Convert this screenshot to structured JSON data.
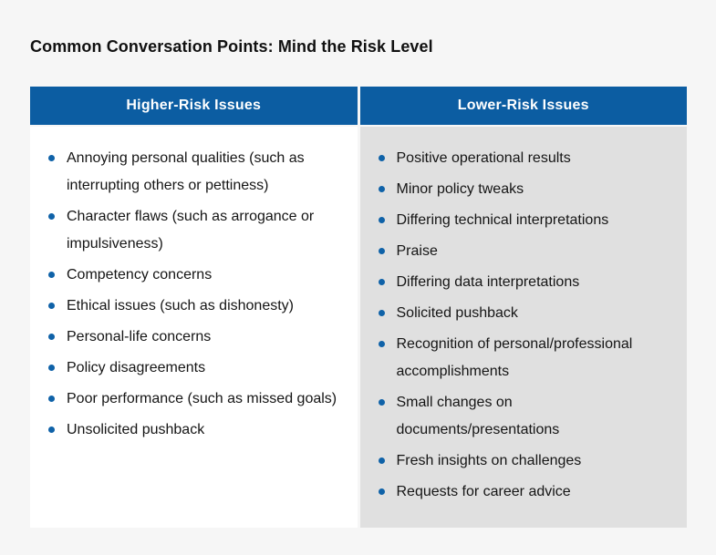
{
  "page": {
    "title": "Common Conversation Points: Mind the Risk Level"
  },
  "colors": {
    "page_bg": "#f6f6f6",
    "header_bg": "#0c5da2",
    "header_text": "#ffffff",
    "left_cell_bg": "#ffffff",
    "right_cell_bg": "#e0e0e0",
    "bullet": "#0f62a8",
    "text": "#151515",
    "title_text": "#111111"
  },
  "table": {
    "columns": [
      {
        "header": "Higher-Risk Issues",
        "items": [
          "Annoying personal qualities (such as\ninterrupting others or pettiness)",
          "Character flaws (such as arrogance or\nimpulsiveness)",
          "Competency concerns",
          "Ethical issues (such as dishonesty)",
          "Personal-life concerns",
          "Policy disagreements",
          "Poor performance (such as missed goals)",
          "Unsolicited pushback"
        ]
      },
      {
        "header": "Lower-Risk Issues",
        "items": [
          "Positive operational results",
          "Minor policy tweaks",
          "Differing technical interpretations",
          "Praise",
          "Differing data interpretations",
          "Solicited pushback",
          "Recognition of personal/professional\naccomplishments",
          "Small changes on\ndocuments/presentations",
          "Fresh insights on challenges",
          "Requests for career advice"
        ]
      }
    ]
  }
}
